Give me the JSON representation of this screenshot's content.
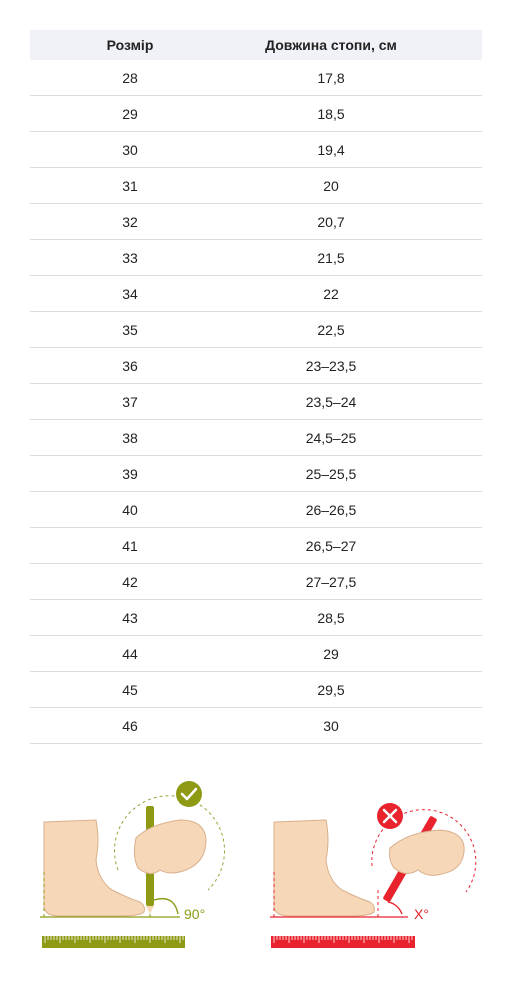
{
  "table": {
    "headers": {
      "size": "Розмір",
      "foot_length": "Довжина стопи, см"
    },
    "rows": [
      {
        "size": "28",
        "length": "17,8"
      },
      {
        "size": "29",
        "length": "18,5"
      },
      {
        "size": "30",
        "length": "19,4"
      },
      {
        "size": "31",
        "length": "20"
      },
      {
        "size": "32",
        "length": "20,7"
      },
      {
        "size": "33",
        "length": "21,5"
      },
      {
        "size": "34",
        "length": "22"
      },
      {
        "size": "35",
        "length": "22,5"
      },
      {
        "size": "36",
        "length": "23–23,5"
      },
      {
        "size": "37",
        "length": "23,5–24"
      },
      {
        "size": "38",
        "length": "24,5–25"
      },
      {
        "size": "39",
        "length": "25–25,5"
      },
      {
        "size": "40",
        "length": "26–26,5"
      },
      {
        "size": "41",
        "length": "26,5–27"
      },
      {
        "size": "42",
        "length": "27–27,5"
      },
      {
        "size": "43",
        "length": "28,5"
      },
      {
        "size": "44",
        "length": "29"
      },
      {
        "size": "45",
        "length": "29,5"
      },
      {
        "size": "46",
        "length": "30"
      }
    ]
  },
  "illustrations": {
    "correct": {
      "angle_label": "90°",
      "status_icon": "check-icon",
      "color": "#8e9a14"
    },
    "wrong": {
      "angle_label": "X°",
      "status_icon": "cross-icon",
      "color": "#e8232d"
    },
    "skin_color": "#f6d7b8"
  }
}
